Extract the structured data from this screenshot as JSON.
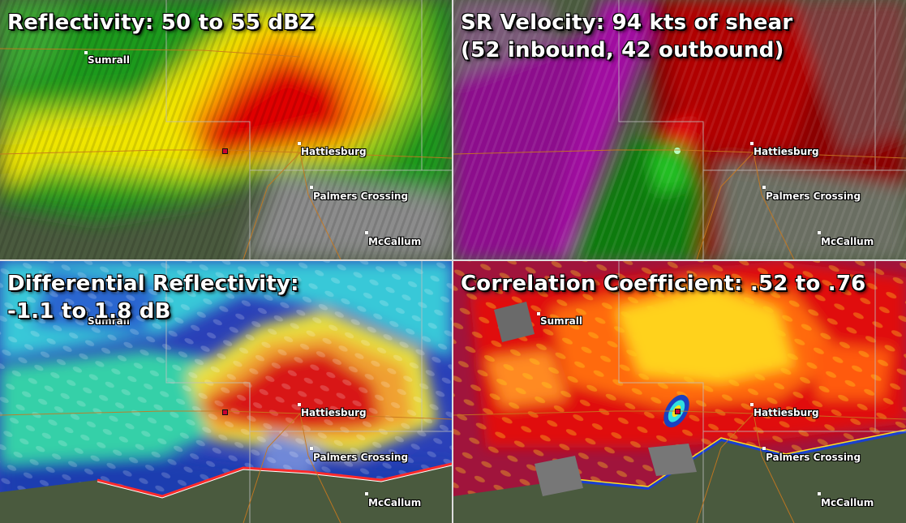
{
  "panels": [
    {
      "id": "reflectivity",
      "title": "Reflectivity: 50 to 55 dBZ",
      "cities": [
        {
          "name": "Sumrall"
        },
        {
          "name": "Hattiesburg"
        },
        {
          "name": "Palmers Crossing"
        },
        {
          "name": "McCallum"
        }
      ]
    },
    {
      "id": "velocity",
      "title": "SR Velocity: 94 kts of shear\n(52 inbound, 42 outbound)",
      "cities": [
        {
          "name": "Hattiesburg"
        },
        {
          "name": "Palmers Crossing"
        },
        {
          "name": "McCallum"
        }
      ]
    },
    {
      "id": "zdr",
      "title": "Differential Reflectivity:\n-1.1 to 1.8 dB",
      "cities": [
        {
          "name": "Sumrall"
        },
        {
          "name": "Hattiesburg"
        },
        {
          "name": "Palmers Crossing"
        },
        {
          "name": "McCallum"
        }
      ]
    },
    {
      "id": "cc",
      "title": "Correlation Coefficient: .52 to .76",
      "cities": [
        {
          "name": "Sumrall"
        },
        {
          "name": "Hattiesburg"
        },
        {
          "name": "Palmers Crossing"
        },
        {
          "name": "McCallum"
        }
      ]
    }
  ],
  "colors": {
    "refl_green": "#1f9a1f",
    "refl_yellow": "#f2e600",
    "refl_orange": "#ff9a00",
    "refl_red": "#e00000",
    "vel_purple": "#8c0d8c",
    "vel_red": "#8a0000",
    "vel_green": "#0a7a0a",
    "zdr_blue": "#1a3cb0",
    "zdr_cyan": "#38c8d8",
    "zdr_red": "#d81818",
    "cc_crimson": "#a0143c",
    "cc_red": "#e01010",
    "cc_yellow": "#ffd21a",
    "county_line": "#bfbfbf",
    "road": "#c8781e"
  }
}
